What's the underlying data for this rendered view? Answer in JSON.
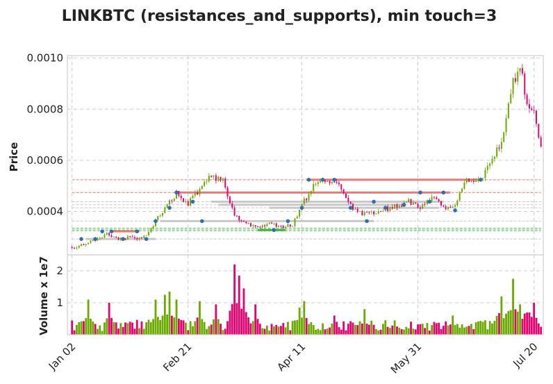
{
  "chart_data": {
    "type": "candlestick",
    "title": "LINKBTC (resistances_and_supports), min touch=3",
    "price_panel": {
      "ylabel": "Price",
      "ylim": [
        0.00023,
        0.00101
      ],
      "yticks": [
        0.0004,
        0.0006,
        0.0008,
        0.001
      ],
      "ytick_labels": [
        "0.0004",
        "0.0006",
        "0.0008",
        "0.0010"
      ]
    },
    "volume_panel": {
      "ylabel": "Volume x 1e7",
      "ylim": [
        0,
        2.5
      ],
      "yticks": [
        1,
        2
      ],
      "ytick_labels": [
        "1",
        "2"
      ]
    },
    "x_axis": {
      "day_range": [
        -2,
        203
      ],
      "tick_days": [
        0,
        50,
        99,
        149,
        199
      ],
      "tick_labels": [
        "Jan 02",
        "Feb 21",
        "Apr 11",
        "May 31",
        "Jul 20"
      ]
    },
    "close_keypoints": [
      [
        0,
        0.00026
      ],
      [
        5,
        0.00027
      ],
      [
        10,
        0.00029
      ],
      [
        15,
        0.00031
      ],
      [
        20,
        0.00029
      ],
      [
        25,
        0.0003
      ],
      [
        30,
        0.00029
      ],
      [
        35,
        0.00035
      ],
      [
        40,
        0.00041
      ],
      [
        45,
        0.00047
      ],
      [
        50,
        0.00043
      ],
      [
        55,
        0.00049
      ],
      [
        60,
        0.00054
      ],
      [
        65,
        0.00052
      ],
      [
        70,
        0.00038
      ],
      [
        75,
        0.00035
      ],
      [
        80,
        0.00034
      ],
      [
        85,
        0.00035
      ],
      [
        90,
        0.00034
      ],
      [
        95,
        0.00035
      ],
      [
        100,
        0.00044
      ],
      [
        105,
        0.00051
      ],
      [
        110,
        0.00052
      ],
      [
        115,
        0.0005
      ],
      [
        120,
        0.00042
      ],
      [
        125,
        0.00039
      ],
      [
        130,
        0.00039
      ],
      [
        135,
        0.00041
      ],
      [
        140,
        0.00042
      ],
      [
        145,
        0.00044
      ],
      [
        150,
        0.00042
      ],
      [
        155,
        0.00046
      ],
      [
        160,
        0.00041
      ],
      [
        165,
        0.00043
      ],
      [
        170,
        0.00052
      ],
      [
        175,
        0.00052
      ],
      [
        180,
        0.00058
      ],
      [
        185,
        0.00068
      ],
      [
        190,
        0.00091
      ],
      [
        193,
        0.00096
      ],
      [
        196,
        0.00083
      ],
      [
        199,
        0.0008
      ],
      [
        202,
        0.00066
      ]
    ],
    "volume_peaks": [
      [
        7,
        1.1
      ],
      [
        16,
        1.0
      ],
      [
        36,
        1.1
      ],
      [
        40,
        1.25
      ],
      [
        42,
        1.35
      ],
      [
        45,
        1.1
      ],
      [
        55,
        1.05
      ],
      [
        62,
        0.95
      ],
      [
        70,
        2.2
      ],
      [
        72,
        1.85
      ],
      [
        74,
        1.45
      ],
      [
        79,
        0.95
      ],
      [
        98,
        0.85
      ],
      [
        100,
        1.05
      ],
      [
        113,
        0.6
      ],
      [
        126,
        0.8
      ],
      [
        139,
        0.45
      ],
      [
        164,
        0.6
      ],
      [
        185,
        1.2
      ],
      [
        190,
        1.75
      ],
      [
        193,
        0.95
      ],
      [
        199,
        1.0
      ]
    ],
    "resistance_levels": [
      0.000524,
      0.000474,
      0.000438,
      0.000426,
      0.000414,
      0.000362,
      0.000322,
      0.000292
    ],
    "support_levels": [
      0.000334,
      0.000327
    ],
    "highlight_segments": [
      {
        "kind": "resistance",
        "price": 0.000524,
        "from_day": 101,
        "to_day": 176
      },
      {
        "kind": "resistance",
        "price": 0.000474,
        "from_day": 46,
        "to_day": 163
      },
      {
        "kind": "neutral",
        "price": 0.000438,
        "from_day": 60,
        "to_day": 160
      },
      {
        "kind": "neutral",
        "price": 0.000426,
        "from_day": 63,
        "to_day": 143
      },
      {
        "kind": "neutral",
        "price": 0.000414,
        "from_day": 85,
        "to_day": 158
      },
      {
        "kind": "neutral",
        "price": 0.000362,
        "from_day": 38,
        "to_day": 130
      },
      {
        "kind": "resistance",
        "price": 0.000322,
        "from_day": 17,
        "to_day": 29
      },
      {
        "kind": "neutral",
        "price": 0.000292,
        "from_day": 6,
        "to_day": 36
      },
      {
        "kind": "support",
        "price": 0.000327,
        "from_day": 80,
        "to_day": 92
      }
    ],
    "touch_points": [
      [
        4,
        0.000292
      ],
      [
        10,
        0.000292
      ],
      [
        13,
        0.000322
      ],
      [
        17,
        0.000322
      ],
      [
        22,
        0.000292
      ],
      [
        28,
        0.000322
      ],
      [
        32,
        0.000292
      ],
      [
        36,
        0.000362
      ],
      [
        42,
        0.000414
      ],
      [
        45,
        0.000474
      ],
      [
        52,
        0.000438
      ],
      [
        56,
        0.000362
      ],
      [
        87,
        0.000327
      ],
      [
        93,
        0.000362
      ],
      [
        99,
        0.000414
      ],
      [
        102,
        0.000524
      ],
      [
        108,
        0.000524
      ],
      [
        113,
        0.000524
      ],
      [
        120,
        0.000414
      ],
      [
        127,
        0.000362
      ],
      [
        130,
        0.000438
      ],
      [
        135,
        0.000414
      ],
      [
        143,
        0.000426
      ],
      [
        150,
        0.000474
      ],
      [
        154,
        0.000438
      ],
      [
        160,
        0.000474
      ],
      [
        165,
        0.000404
      ],
      [
        176,
        0.000524
      ]
    ],
    "colors": {
      "up": "#6aaa00",
      "down": "#e8006e",
      "resistance": "#e87878",
      "support": "#3cb33c",
      "neutral": "#c8c8c8",
      "touch": "#2f6fae",
      "grid": "#cccccc",
      "frame": "#cfcfcf"
    }
  }
}
